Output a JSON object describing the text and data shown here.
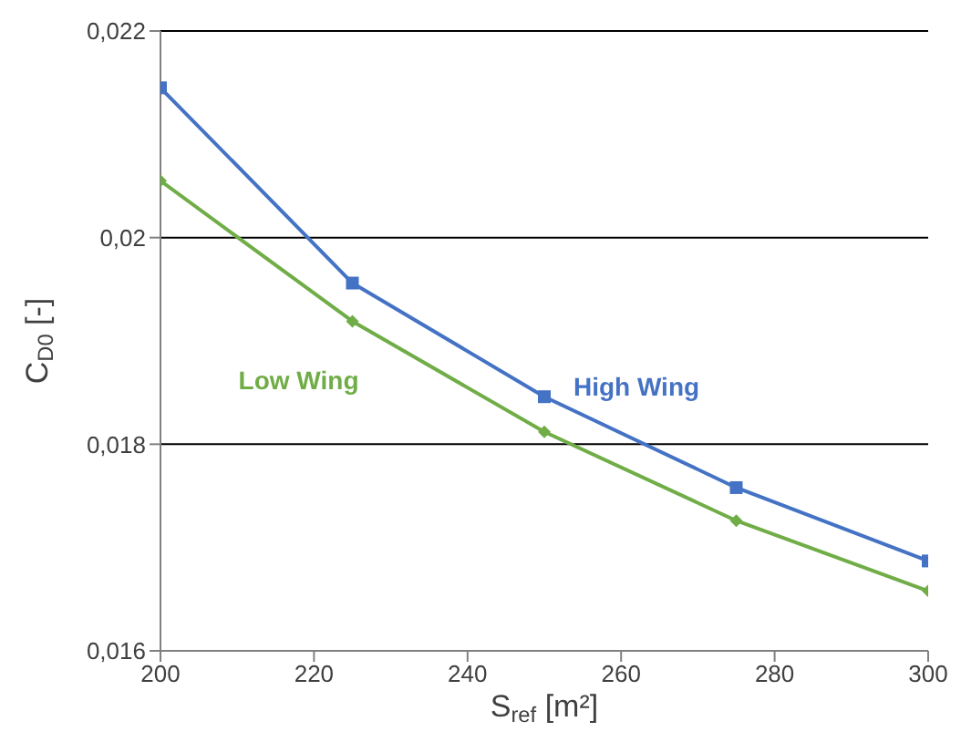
{
  "chart_data": {
    "type": "line",
    "xlabel": "S$_{ref}$ [m²]",
    "ylabel": "C$_{D0}$ [-]",
    "x": [
      200,
      225,
      250,
      275,
      300
    ],
    "series": [
      {
        "name": "High Wing",
        "color": "#4472c4",
        "marker": "square",
        "values": [
          0.02145,
          0.01956,
          0.01846,
          0.01758,
          0.01687
        ]
      },
      {
        "name": "Low Wing",
        "color": "#70ad47",
        "marker": "diamond",
        "values": [
          0.02055,
          0.01919,
          0.01812,
          0.01726,
          0.01658
        ]
      }
    ],
    "xlim": [
      200,
      300
    ],
    "xticks": [
      200,
      220,
      240,
      260,
      280,
      300
    ],
    "ylim": [
      0.016,
      0.022
    ],
    "yticks": [
      {
        "value": 0.016,
        "label": "0,016"
      },
      {
        "value": 0.018,
        "label": "0,018"
      },
      {
        "value": 0.02,
        "label": "0,02"
      },
      {
        "value": 0.022,
        "label": "0,022"
      }
    ],
    "grid": "y",
    "legend": false,
    "line_style": "solid"
  }
}
